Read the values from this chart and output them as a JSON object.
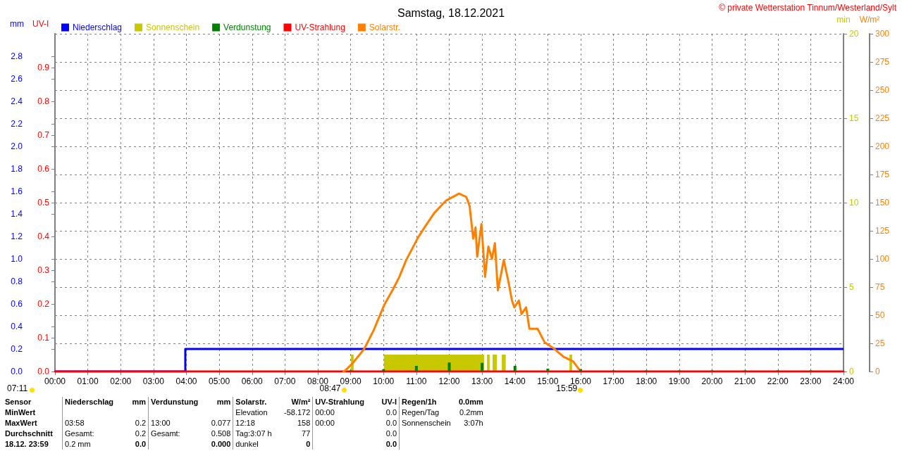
{
  "chart_data": {
    "type": "line",
    "title": "Samstag, 18.12.2021",
    "ylabel": "mm",
    "y2label": "W/m²",
    "y3label": "min",
    "xlim": [
      0,
      24
    ],
    "xticks": [
      {
        "value": 0,
        "label": "00:00"
      },
      {
        "value": 1,
        "label": "01:00"
      },
      {
        "value": 2,
        "label": "02:00"
      },
      {
        "value": 3,
        "label": "03:00"
      },
      {
        "value": 4,
        "label": "04:00"
      },
      {
        "value": 5,
        "label": "05:00"
      },
      {
        "value": 6,
        "label": "06:00"
      },
      {
        "value": 7,
        "label": "07:00"
      },
      {
        "value": 8,
        "label": "08:00"
      },
      {
        "value": 9,
        "label": "09:00"
      },
      {
        "value": 10,
        "label": "10:00"
      },
      {
        "value": 11,
        "label": "11:00"
      },
      {
        "value": 12,
        "label": "12:00"
      },
      {
        "value": 13,
        "label": "13:00"
      },
      {
        "value": 14,
        "label": "14:00"
      },
      {
        "value": 15,
        "label": "15:00"
      },
      {
        "value": 16,
        "label": "16:00"
      },
      {
        "value": 17,
        "label": "17:00"
      },
      {
        "value": 18,
        "label": "18:00"
      },
      {
        "value": 19,
        "label": "19:00"
      },
      {
        "value": 20,
        "label": "20:00"
      },
      {
        "value": 21,
        "label": "21:00"
      },
      {
        "value": 22,
        "label": "22:00"
      },
      {
        "value": 23,
        "label": "23:00"
      },
      {
        "value": 24,
        "label": "24:00"
      }
    ],
    "ylim": [
      0,
      3
    ],
    "yticks": [
      {
        "value": 0,
        "label": "0.0"
      },
      0.2,
      0.4,
      0.6,
      0.8,
      {
        "value": 1,
        "label": "1.0"
      },
      1.2,
      1.4,
      1.6,
      1.8,
      {
        "value": 2,
        "label": "2.0"
      },
      2.2,
      2.4,
      2.6,
      2.8
    ],
    "y2lim": [
      0,
      300
    ],
    "y2ticks": [
      0,
      25,
      50,
      75,
      100,
      125,
      150,
      175,
      200,
      225,
      250,
      275,
      300
    ],
    "y3lim": [
      0,
      20
    ],
    "y3ticks": [
      0,
      5,
      10,
      15,
      20
    ],
    "grid": true,
    "legend": "top left",
    "marker": "none",
    "series": [
      {
        "name": "Niederschlag",
        "type": "step",
        "color": "#0000ff",
        "x": [
          0,
          3.967,
          24
        ],
        "values": [
          0,
          0.2,
          0.2
        ]
      },
      {
        "name": "Sonnenschein",
        "type": "histogram",
        "axis": "y3",
        "color": "#c8c800",
        "bins": [
          9.01,
          9.09,
          10.01,
          13.06,
          13.15,
          13.23,
          13.32,
          13.45,
          13.6,
          13.72,
          15.66,
          15.74
        ],
        "values": [
          1,
          0,
          1,
          0,
          1,
          0,
          1,
          0,
          1,
          0,
          1
        ]
      },
      {
        "name": "Verdunstung",
        "type": "bar",
        "color": "#008000",
        "x": [
          9,
          10,
          11,
          12,
          13,
          14,
          15,
          16,
          17,
          18,
          19,
          20,
          21,
          22,
          23
        ],
        "values": [
          0.01,
          0.02,
          0.05,
          0.08,
          0.077,
          0.05,
          0.025,
          0.02,
          0.01,
          0.01,
          0.01,
          0.01,
          0.01,
          0.01,
          0.01
        ]
      },
      {
        "name": "UV-Strahlung",
        "type": "line",
        "color": "#ff0000",
        "x": [
          0,
          24
        ],
        "values": [
          0,
          0
        ]
      },
      {
        "name": "Solarstr.",
        "axis": "y2",
        "color": "#ff8000",
        "x": [
          8.78,
          8.84,
          9.05,
          9.41,
          9.69,
          10.02,
          10.27,
          10.48,
          10.69,
          11.05,
          11.27,
          11.55,
          11.91,
          12.3,
          12.52,
          12.62,
          12.73,
          12.8,
          12.85,
          12.98,
          13.09,
          13.19,
          13.3,
          13.39,
          13.48,
          13.66,
          13.8,
          13.91,
          13.98,
          14.12,
          14.2,
          14.34,
          14.44,
          14.69,
          14.9,
          15.16,
          15.48,
          15.77,
          15.95,
          15.98
        ],
        "values": [
          0,
          1,
          7,
          20,
          36,
          59,
          72,
          84,
          99,
          119,
          129,
          141,
          152,
          158,
          155,
          147,
          118,
          128,
          102,
          131,
          84,
          111,
          100,
          114,
          72,
          99,
          80,
          63,
          57,
          63,
          51,
          57,
          38,
          38,
          26,
          21,
          13,
          9,
          2,
          1
        ]
      }
    ],
    "annotations": [
      "© private Wetterstation Tinnum/Westerland/Sylt",
      "07:11",
      "UV-I",
      "0.0",
      "0.1",
      "0.2",
      "0.3",
      "0.4",
      "0.5",
      "0.6",
      "0.7",
      "0.8",
      "0.9",
      {
        "text": "08:47",
        "x": 8.783,
        "y": 0
      },
      {
        "text": "15:59",
        "x": 15.983,
        "y": 0
      },
      "Sensor\tNiederschlag\tmm\tVerdunstung\tmm\tSolarstr.\tW/m²\tUV-Strahlung\tUV-I\tRegen/1h\t0.0mm",
      "MinWert\t\t\t\t\tElevation\t-58.172\t00:00\t0.0\tRegen/Tag\t0.2mm",
      "MaxWert\t03:58\t0.2\t13:00\t0.077\t12:18\t158\t00:00\t0.0\tSonnenschein\t3:07h",
      "Durchschnitt\tGesamt:\t0.2\tGesamt:\t0.508\tTag:3:07 h\t77\t\t0.0\t\t",
      "18.12. 23:59\t0.2 mm\t0.0\t\t0.000\tdunkel\t0\t\t0.0\t\t"
    ]
  }
}
